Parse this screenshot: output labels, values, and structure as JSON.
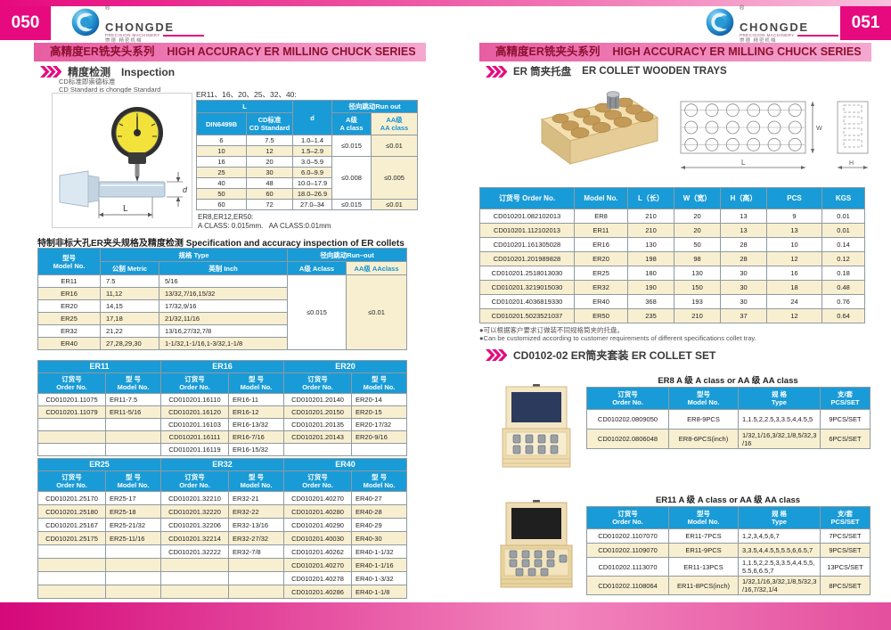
{
  "brand": {
    "name": "CHONGDE",
    "tagline": "PRECISION MACHINERY",
    "tagline_cn": "崇德 精密机械",
    "registered": "®"
  },
  "banner": {
    "cn": "高精度ER铣夹头系列",
    "en": "HIGH ACCURACY ER MILLING CHUCK SERIES"
  },
  "left": {
    "page_number": "050",
    "inspection": {
      "heading_cn": "精度检测",
      "heading_en": "Inspection",
      "std_cn": "CD标准即崇德标准",
      "std_en": "CD Standard is chongde Standard",
      "series": "ER11、16、20、25、32、40:",
      "diagram": {
        "d": "d",
        "l": "L"
      },
      "din_table": {
        "h_l": "L",
        "h_d": "d",
        "h_runout": "径向跳动Run out",
        "h_din": "DIN6499B",
        "h_cd_cn": "CD标准",
        "h_cd_en": "CD Standard",
        "h_a_cn": "A级",
        "h_a_en": "A class",
        "h_aa_cn": "AA级",
        "h_aa_en": "AA class",
        "rows": [
          [
            "6",
            "7.5",
            "1.0–1.4"
          ],
          [
            "10",
            "12",
            "1.5–2.9"
          ],
          [
            "16",
            "20",
            "3.0–5.9"
          ],
          [
            "25",
            "30",
            "6.0–9.9"
          ],
          [
            "40",
            "48",
            "10.0–17.9"
          ],
          [
            "50",
            "60",
            "18.0–26.9"
          ],
          [
            "60",
            "72",
            "27.0–34"
          ]
        ],
        "runout": {
          "g1_a": "≤0.015",
          "g1_aa": "≤0.01",
          "g2_a": "≤0.008",
          "g2_aa": "≤0.005",
          "g3_a": "≤0.015",
          "g3_aa": "≤0.01"
        }
      },
      "note1": "ER8,ER12,ER50:",
      "note2": "A CLASS: 0.015mm.   AA CLASS:0.01mm"
    },
    "spec": {
      "title_cn": "特制非标大孔ER夹头规格及精度检测",
      "title_en": "Specification and accuracy inspection of ER collets",
      "h_model_cn": "型号",
      "h_model_en": "Model No.",
      "h_type": "规格 Type",
      "h_metric": "公制 Metric",
      "h_inch": "英制 Inch",
      "h_runout": "径向跳动Run–out",
      "h_a": "A级 Aclass",
      "h_aa": "AA级 AAclass",
      "rows": [
        [
          "ER11",
          "7.5",
          "5/16"
        ],
        [
          "ER16",
          "11,12",
          "13/32,7/16,15/32"
        ],
        [
          "ER20",
          "14,15",
          "17/32,9/16"
        ],
        [
          "ER25",
          "17,18",
          "21/32,11/16"
        ],
        [
          "ER32",
          "21,22",
          "13/16,27/32,7/8"
        ],
        [
          "ER40",
          "27,28,29,30",
          "1-1/32,1-1/16,1-3/32,1-1/8"
        ]
      ],
      "a_value": "≤0.015",
      "aa_value": "≤0.01"
    },
    "orders_headers": {
      "order_cn": "订货号",
      "order_en": "Order No.",
      "model_cn": "型 号",
      "model_en": "Model  No."
    },
    "orders1": {
      "groups": [
        "ER11",
        "ER16",
        "ER20"
      ],
      "rows": [
        [
          "CD010201.11075",
          "ER11-7.5",
          "CD010201.16110",
          "ER16-11",
          "CD010201.20140",
          "ER20-14"
        ],
        [
          "CD010201.11079",
          "ER11-5/16",
          "CD010201.16120",
          "ER16-12",
          "CD010201.20150",
          "ER20-15"
        ],
        [
          "",
          "",
          "CD010201.16103",
          "ER16-13/32",
          "CD010201.20135",
          "ER20-17/32"
        ],
        [
          "",
          "",
          "CD010201.16111",
          "ER16-7/16",
          "CD010201.20143",
          "ER20-9/16"
        ],
        [
          "",
          "",
          "CD010201.16119",
          "ER16-15/32",
          "",
          ""
        ]
      ]
    },
    "orders2": {
      "groups": [
        "ER25",
        "ER32",
        "ER40"
      ],
      "rows": [
        [
          "CD010201.25170",
          "ER25-17",
          "CD010201.32210",
          "ER32-21",
          "CD010201.40270",
          "ER40-27"
        ],
        [
          "CD010201.25180",
          "ER25-18",
          "CD010201.32220",
          "ER32-22",
          "CD010201.40280",
          "ER40-28"
        ],
        [
          "CD010201.25167",
          "ER25-21/32",
          "CD010201.32206",
          "ER32-13/16",
          "CD010201.40290",
          "ER40-29"
        ],
        [
          "CD010201.25175",
          "ER25-11/16",
          "CD010201.32214",
          "ER32-27/32",
          "CD010201.40030",
          "ER40-30"
        ],
        [
          "",
          "",
          "CD010201.32222",
          "ER32-7/8",
          "CD010201.40262",
          "ER40-1-1/32"
        ],
        [
          "",
          "",
          "",
          "",
          "CD010201.40270",
          "ER40-1-1/16"
        ],
        [
          "",
          "",
          "",
          "",
          "CD010201.40278",
          "ER40-1-3/32"
        ],
        [
          "",
          "",
          "",
          "",
          "CD010201.40286",
          "ER40-1-1/8"
        ]
      ]
    }
  },
  "right": {
    "page_number": "051",
    "trays": {
      "heading_cn": "ER 筒夹托盘",
      "heading_en": "ER COLLET WOODEN TRAYS",
      "diagram": {
        "l": "L",
        "w": "W",
        "h": "H"
      },
      "headers": [
        "订货号 Order No.",
        "Model No.",
        "L（长）",
        "W（宽）",
        "H（高）",
        "PCS",
        "KGS"
      ],
      "rows": [
        [
          "CD010201.082102013",
          "ER8",
          "210",
          "20",
          "13",
          "9",
          "0.01"
        ],
        [
          "CD010201.112102013",
          "ER11",
          "210",
          "20",
          "13",
          "13",
          "0.01"
        ],
        [
          "CD010201.161305028",
          "ER16",
          "130",
          "50",
          "28",
          "10",
          "0.14"
        ],
        [
          "CD010201.201989828",
          "ER20",
          "198",
          "98",
          "28",
          "12",
          "0.12"
        ],
        [
          "CD010201.2518013030",
          "ER25",
          "180",
          "130",
          "30",
          "16",
          "0.18"
        ],
        [
          "CD010201.3219015030",
          "ER32",
          "190",
          "150",
          "30",
          "18",
          "0.48"
        ],
        [
          "CD010201.4036819330",
          "ER40",
          "368",
          "193",
          "30",
          "24",
          "0.76"
        ],
        [
          "CD010201.5023521037",
          "ER50",
          "235",
          "210",
          "37",
          "12",
          "0.64"
        ]
      ],
      "note_cn": "●可以根据客户要求订做装不同规格筒夹的托盘。",
      "note_en": "●Can be customized according to customer requirements of different specifications collet tray."
    },
    "collet_set": {
      "heading": "CD0102-02 ER筒夹套装  ER COLLET SET",
      "h_order_cn": "订货号",
      "h_order_en": "Order No.",
      "h_model_cn": "型号",
      "h_model_en": "Model No.",
      "h_type_cn": "规 格",
      "h_type_en": "Type",
      "h_pcs_cn": "支/套",
      "h_pcs_en": "PCS/SET",
      "er8": {
        "title": "ER8 A 级 A class or AA 级 AA class",
        "rows": [
          [
            "CD010202.0809050",
            "ER8-9PCS",
            "1,1.5,2,2.5,3,3.5,4,4.5,5",
            "9PCS/SET"
          ],
          [
            "CD010202.0806048",
            "ER8-6PCS(inch)",
            "1/32,1/16,3/32,1/8,5/32,3/16",
            "6PCS/SET"
          ]
        ]
      },
      "er11": {
        "title": "ER11 A 级 A class  or AA 级 AA class",
        "rows": [
          [
            "CD010202.1107070",
            "ER11-7PCS",
            "1,2,3,4,5,6,7",
            "7PCS/SET"
          ],
          [
            "CD010202.1109070",
            "ER11-9PCS",
            "3,3.5,4,4.5,5,5.5,6,6.5,7",
            "9PCS/SET"
          ],
          [
            "CD010202.1113070",
            "ER11-13PCS",
            "1,1.5,2,2.5,3,3.5,4,4.5,5,5.5,6,6.5,7",
            "13PCS/SET"
          ],
          [
            "CD010202.1108064",
            "ER11-8PCS(inch)",
            "1/32,1/16,3/32,1/8,5/32,3/16,7/32,1/4",
            "8PCS/SET"
          ]
        ]
      }
    }
  }
}
